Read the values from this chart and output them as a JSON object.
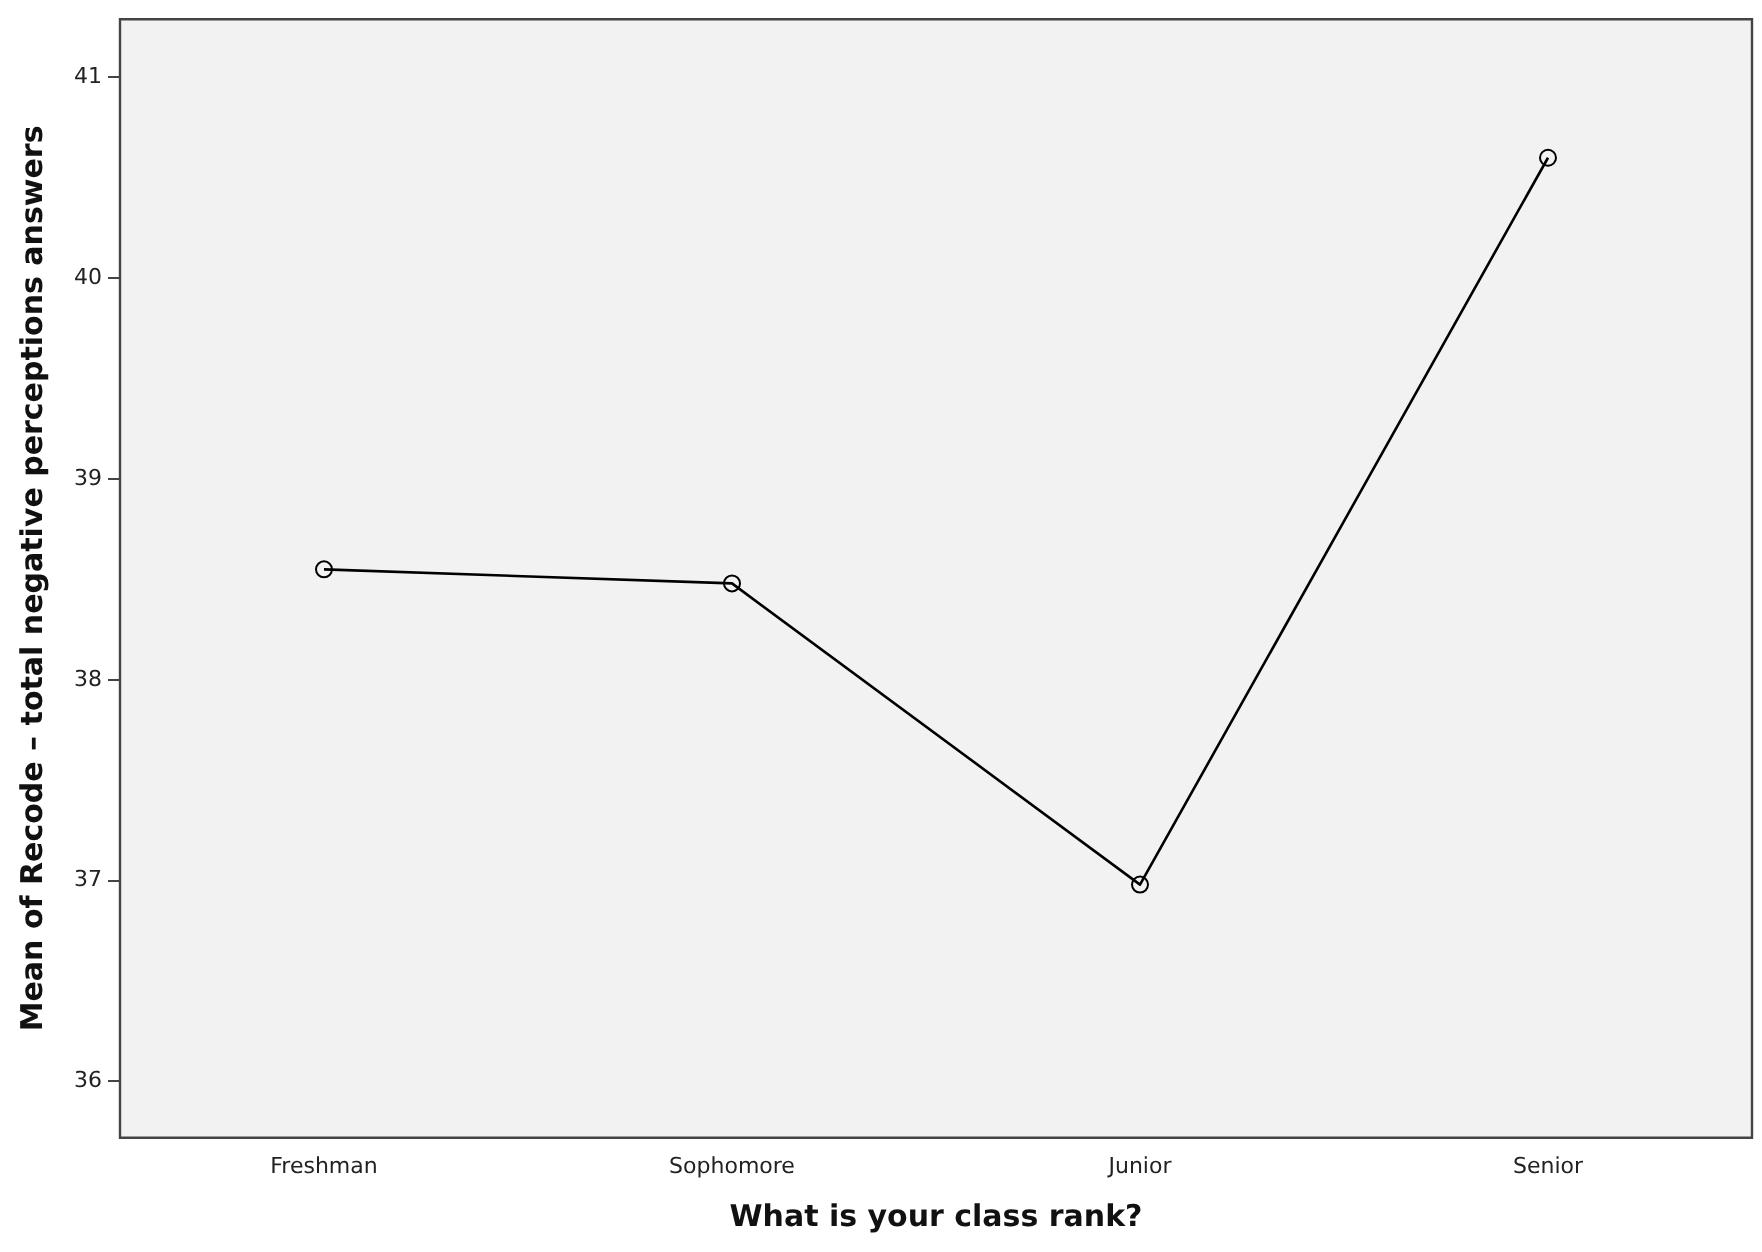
{
  "chart_data": {
    "type": "line",
    "xlabel": "What is your class rank?",
    "ylabel": "Mean of Recode – total negative perceptions answers",
    "categories": [
      "Freshman",
      "Sophomore",
      "Junior",
      "Senior"
    ],
    "series": [
      {
        "color": "#000000",
        "values": [
          38.55,
          38.48,
          36.98,
          40.6
        ]
      }
    ],
    "ylim": [
      35.72,
      41.29
    ],
    "yticks": [
      36,
      37,
      38,
      39,
      40,
      41
    ],
    "grid": false,
    "legend": false,
    "marker": "circle",
    "line_style": "solid"
  }
}
